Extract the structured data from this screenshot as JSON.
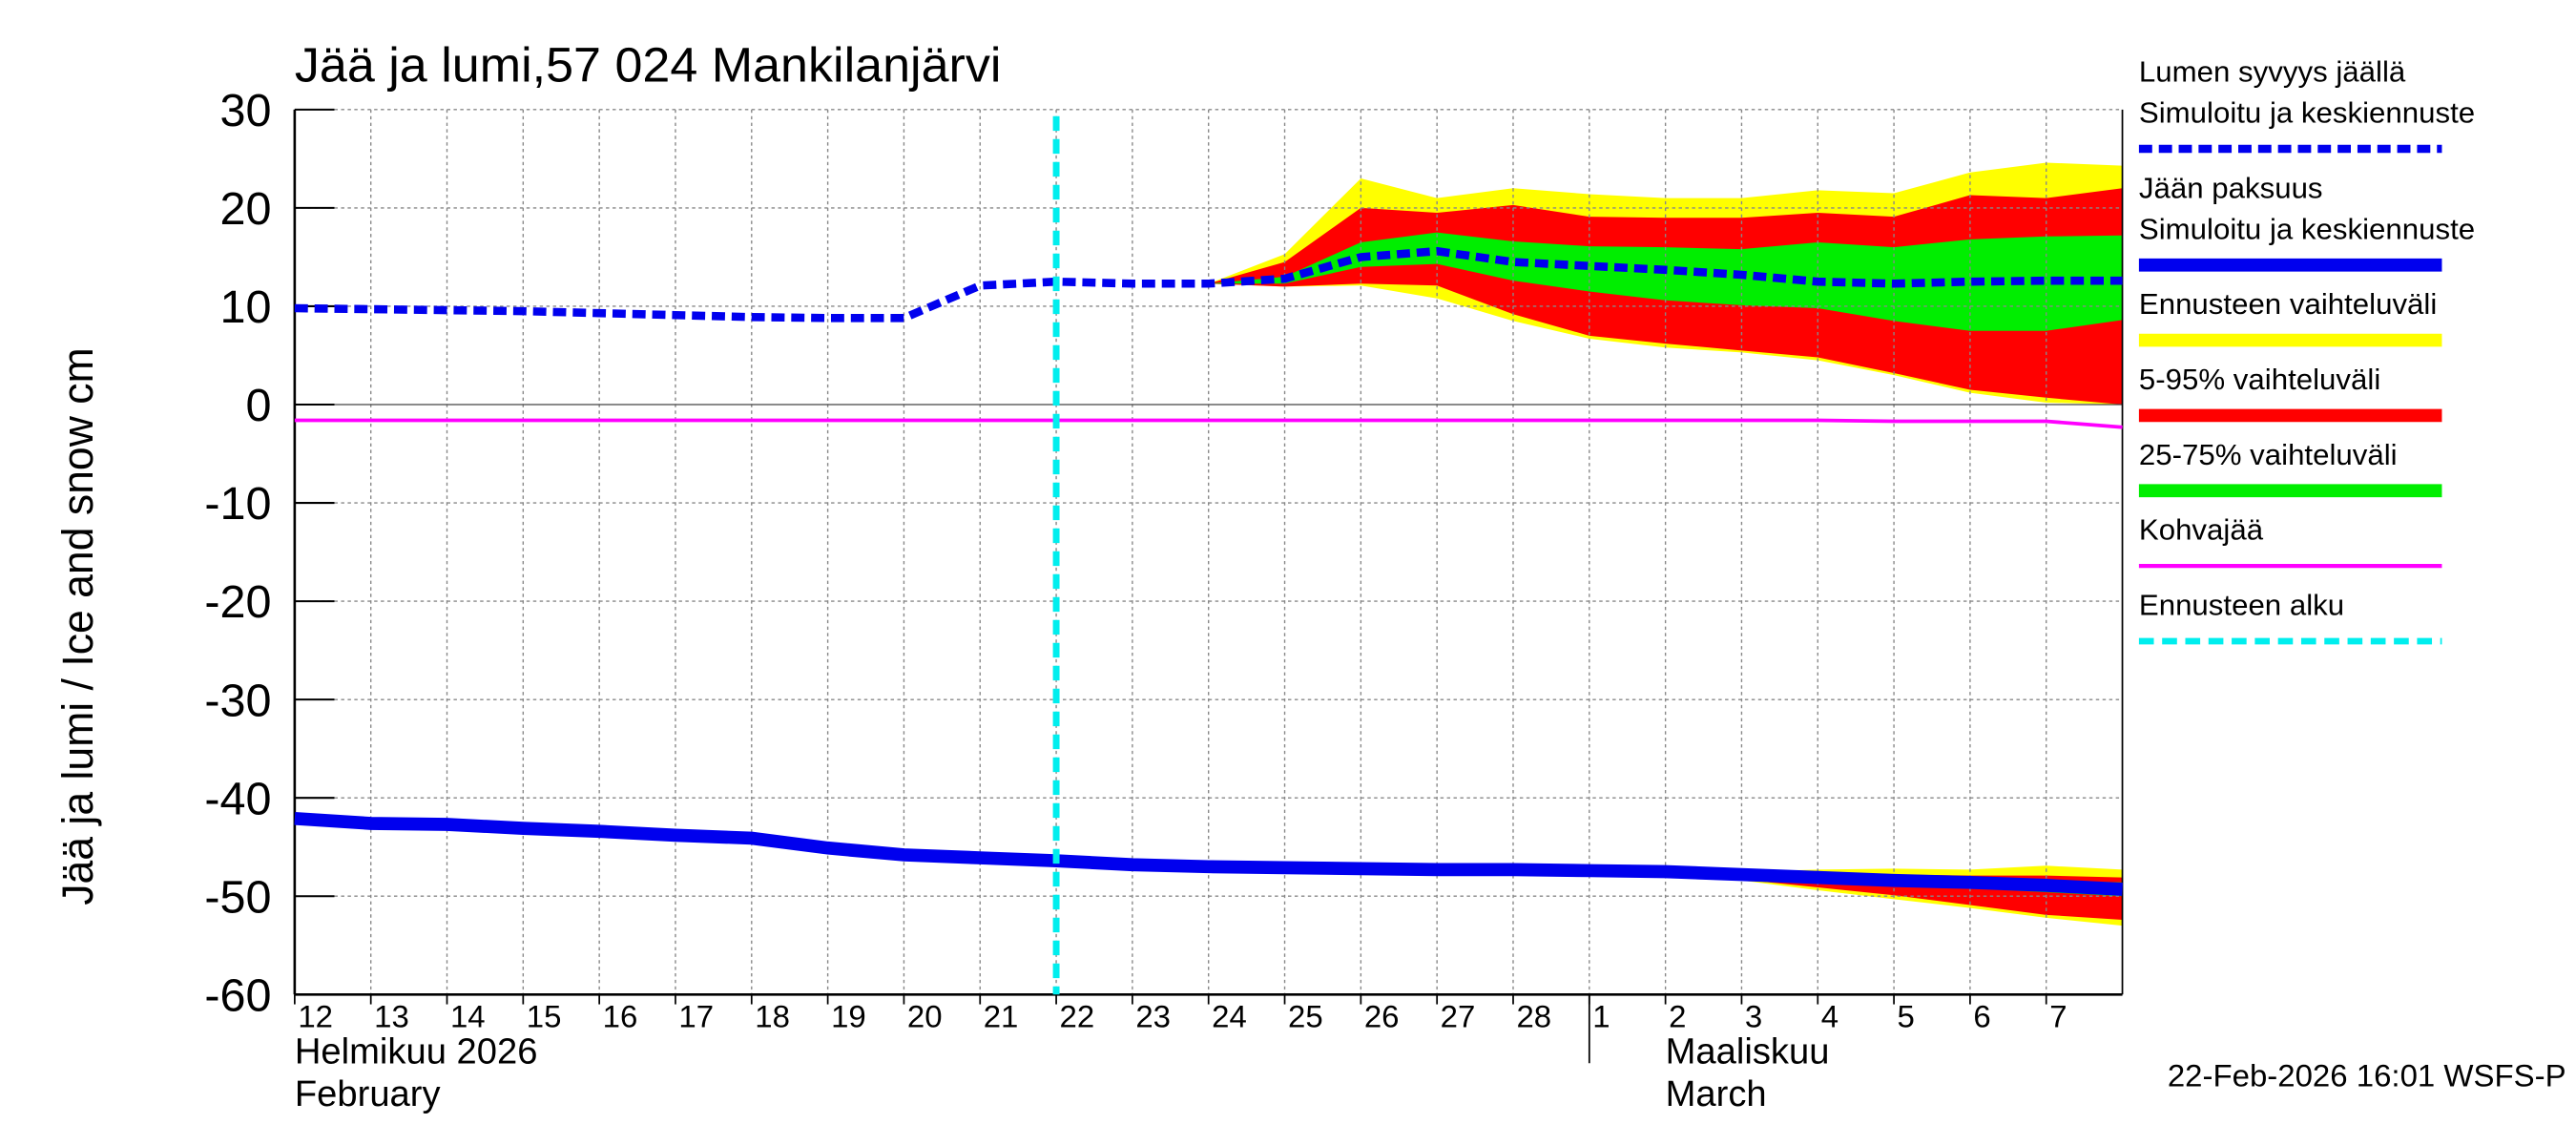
{
  "chart_data": {
    "type": "line",
    "title": "Jää ja lumi,57 024 Mankilanjärvi",
    "ylabel": "Jää ja lumi / Ice and snow    cm",
    "footer": "22-Feb-2026 16:01 WSFS-P",
    "grid": true,
    "x": [
      0,
      1,
      2,
      3,
      4,
      5,
      6,
      7,
      8,
      9,
      10,
      11,
      12,
      13,
      14,
      15,
      16,
      17,
      18,
      19,
      20,
      21,
      22,
      23,
      24
    ],
    "xlim": [
      0,
      24
    ],
    "xticks": [
      {
        "value": 0,
        "label": "12"
      },
      {
        "value": 1,
        "label": "13"
      },
      {
        "value": 2,
        "label": "14"
      },
      {
        "value": 3,
        "label": "15"
      },
      {
        "value": 4,
        "label": "16"
      },
      {
        "value": 5,
        "label": "17"
      },
      {
        "value": 6,
        "label": "18"
      },
      {
        "value": 7,
        "label": "19"
      },
      {
        "value": 8,
        "label": "20"
      },
      {
        "value": 9,
        "label": "21"
      },
      {
        "value": 10,
        "label": "22"
      },
      {
        "value": 11,
        "label": "23"
      },
      {
        "value": 12,
        "label": "24"
      },
      {
        "value": 13,
        "label": "25"
      },
      {
        "value": 14,
        "label": "26"
      },
      {
        "value": 15,
        "label": "27"
      },
      {
        "value": 16,
        "label": "28"
      },
      {
        "value": 17,
        "label": "1"
      },
      {
        "value": 18,
        "label": "2"
      },
      {
        "value": 19,
        "label": "3"
      },
      {
        "value": 20,
        "label": "4"
      },
      {
        "value": 21,
        "label": "5"
      },
      {
        "value": 22,
        "label": "6"
      },
      {
        "value": 23,
        "label": "7"
      }
    ],
    "months": [
      {
        "x": 0,
        "labels": [
          "Helmikuu  2026",
          "February"
        ]
      },
      {
        "x": 17,
        "labels": [
          "Maaliskuu",
          "March"
        ]
      }
    ],
    "ylim": [
      -60,
      30
    ],
    "yticks": [
      -60,
      -50,
      -40,
      -30,
      -20,
      -10,
      0,
      10,
      20,
      30
    ],
    "bands": [
      {
        "name": "Ennusteen vaihteluväli",
        "color": "#ffff00",
        "snow_upper": [
          null,
          null,
          null,
          null,
          null,
          null,
          null,
          null,
          null,
          null,
          null,
          null,
          12.3,
          15.3,
          23,
          21,
          22,
          21.4,
          21,
          21,
          21.8,
          21.5,
          23.6,
          24.6,
          24.3
        ],
        "snow_lower": [
          null,
          null,
          null,
          null,
          null,
          null,
          null,
          null,
          null,
          null,
          null,
          null,
          12.3,
          12,
          12.1,
          10.8,
          8.5,
          6.7,
          5.8,
          5.3,
          4.5,
          3,
          1.2,
          0.2,
          0
        ],
        "ice_upper": [
          null,
          null,
          null,
          null,
          null,
          null,
          null,
          null,
          null,
          null,
          null,
          null,
          null,
          null,
          null,
          null,
          null,
          -47.4,
          -47.5,
          -47.5,
          -47.3,
          -47.2,
          -47.3,
          -46.9,
          -47.3
        ],
        "ice_lower": [
          null,
          null,
          null,
          null,
          null,
          null,
          null,
          null,
          null,
          null,
          null,
          null,
          null,
          null,
          null,
          null,
          null,
          -47.4,
          -47.7,
          -48.4,
          -49.4,
          -50.3,
          -51.2,
          -52.2,
          -53
        ]
      },
      {
        "name": "5-95% vaihteluväli",
        "color": "#ff0000",
        "snow_upper": [
          null,
          null,
          null,
          null,
          null,
          null,
          null,
          null,
          null,
          null,
          null,
          null,
          12.3,
          14.5,
          20,
          19.5,
          20.3,
          19.1,
          19,
          19,
          19.5,
          19.1,
          21.3,
          21,
          22
        ],
        "snow_lower": [
          null,
          null,
          null,
          null,
          null,
          null,
          null,
          null,
          null,
          null,
          null,
          null,
          12.3,
          12,
          12.3,
          12.1,
          9.2,
          7,
          6.2,
          5.5,
          4.8,
          3.2,
          1.5,
          0.7,
          0
        ],
        "ice_upper": [
          null,
          null,
          null,
          null,
          null,
          null,
          null,
          null,
          null,
          null,
          null,
          null,
          null,
          null,
          null,
          null,
          null,
          -47.4,
          -47.5,
          -47.6,
          -47.7,
          -47.8,
          -47.9,
          -47.9,
          -48.1
        ],
        "ice_lower": [
          null,
          null,
          null,
          null,
          null,
          null,
          null,
          null,
          null,
          null,
          null,
          null,
          null,
          null,
          null,
          null,
          null,
          -47.4,
          -47.7,
          -48.3,
          -49.1,
          -49.9,
          -50.9,
          -51.9,
          -52.4
        ]
      },
      {
        "name": "25-75% vaihteluväli",
        "color": "#00ee00",
        "snow_upper": [
          null,
          null,
          null,
          null,
          null,
          null,
          null,
          null,
          null,
          null,
          null,
          null,
          12.3,
          13,
          16.5,
          17.5,
          16.6,
          16.1,
          16,
          15.8,
          16.5,
          16,
          16.8,
          17.1,
          17.2
        ],
        "snow_lower": [
          null,
          null,
          null,
          null,
          null,
          null,
          null,
          null,
          null,
          null,
          null,
          null,
          12.3,
          12.3,
          14,
          14.3,
          12.6,
          11.5,
          10.6,
          10.1,
          9.8,
          8.5,
          7.5,
          7.5,
          8.6
        ],
        "ice_upper": [
          null,
          null,
          null,
          null,
          null,
          null,
          null,
          null,
          null,
          null,
          null,
          null,
          null,
          null,
          null,
          null,
          null,
          -47.4,
          -47.5,
          -47.7,
          -47.9,
          -48.1,
          -48.3,
          -48.4,
          -48.6
        ],
        "ice_lower": [
          null,
          null,
          null,
          null,
          null,
          null,
          null,
          null,
          null,
          null,
          null,
          null,
          null,
          null,
          null,
          null,
          null,
          -47.4,
          -47.6,
          -47.9,
          -48.3,
          -48.8,
          -49.2,
          -49.6,
          -50
        ]
      }
    ],
    "series": [
      {
        "name": "Lumen syvyys jäällä",
        "label": "Simuloitu ja keskiennuste",
        "color": "#0000ee",
        "dashed": true,
        "values": [
          9.8,
          9.7,
          9.6,
          9.5,
          9.3,
          9.1,
          8.9,
          8.8,
          8.8,
          12.1,
          12.5,
          12.3,
          12.3,
          12.8,
          15,
          15.6,
          14.5,
          14.1,
          13.7,
          13.2,
          12.5,
          12.3,
          12.5,
          12.6,
          12.6
        ]
      },
      {
        "name": "Jään paksuus",
        "label": "Simuloitu ja keskiennuste",
        "color": "#0000ee",
        "dashed": false,
        "values": [
          -42.1,
          -42.6,
          -42.7,
          -43.1,
          -43.4,
          -43.8,
          -44.1,
          -45.1,
          -45.8,
          -46.1,
          -46.4,
          -46.8,
          -47,
          -47.1,
          -47.2,
          -47.3,
          -47.3,
          -47.4,
          -47.5,
          -47.8,
          -48.1,
          -48.4,
          -48.6,
          -48.9,
          -49.3
        ]
      },
      {
        "name": "Kohvajää",
        "color": "#ff00ff",
        "dashed": false,
        "values": [
          -1.6,
          -1.6,
          -1.6,
          -1.6,
          -1.6,
          -1.6,
          -1.6,
          -1.6,
          -1.6,
          -1.6,
          -1.6,
          -1.6,
          -1.6,
          -1.6,
          -1.6,
          -1.6,
          -1.6,
          -1.6,
          -1.6,
          -1.6,
          -1.6,
          -1.7,
          -1.7,
          -1.7,
          -2.3
        ]
      }
    ],
    "forecast_start": {
      "name": "Ennusteen alku",
      "x": 10,
      "color": "#00eeee"
    }
  }
}
